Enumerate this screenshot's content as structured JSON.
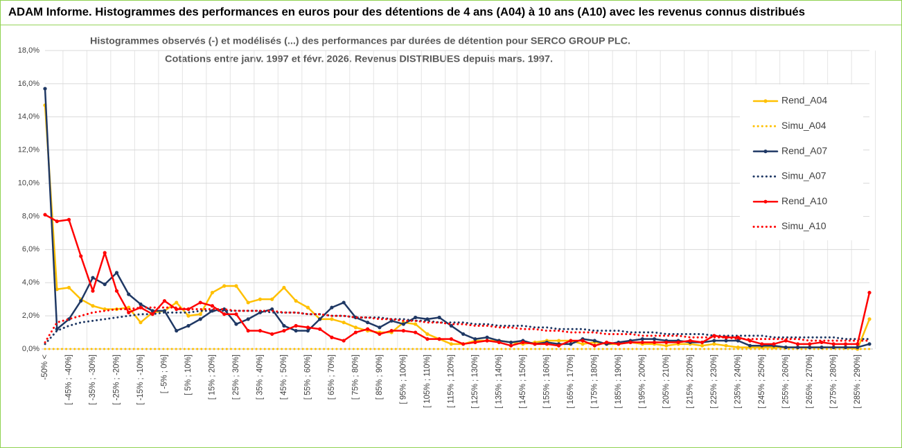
{
  "chart_data": {
    "type": "line",
    "title": "ADAM Informe. Histogrammes des performances en euros pour des détentions de 4 ans (A04) à 10 ans (A10) avec les revenus connus distribués",
    "subtitle": [
      "Histogrammes observés (-) et modélisés (...) des performances par durées de détention pour SERCO GROUP PLC.",
      "Cotations entre janv. 1997 et févr. 2026. Revenus DISTRIBUES depuis mars. 1997."
    ],
    "categories": [
      "-50% <",
      null,
      "[ -45% ; -40%]",
      null,
      "[ -35% ; -30%]",
      null,
      "[ -25% ; -20%]",
      null,
      "[ -15% ; -10%]",
      null,
      "[ -5% ; 0%]",
      null,
      "[ 5% ; 10%]",
      null,
      "[ 15% ; 20%]",
      null,
      "[ 25% ; 30%]",
      null,
      "[ 35% ; 40%]",
      null,
      "[ 45% ; 50%]",
      null,
      "[ 55% ; 60%]",
      null,
      "[ 65% ; 70%]",
      null,
      "[ 75% ; 80%]",
      null,
      "[ 85% ; 90%]",
      null,
      "[ 95% ; 100%]",
      null,
      "[ 105% ; 110%]",
      null,
      "[ 115% ; 120%]",
      null,
      "[ 125% ; 130%]",
      null,
      "[ 135% ; 140%]",
      null,
      "[ 145% ; 150%]",
      null,
      "[ 155% ; 160%]",
      null,
      "[ 165% ; 170%]",
      null,
      "[ 175% ; 180%]",
      null,
      "[ 185% ; 190%]",
      null,
      "[ 195% ; 200%]",
      null,
      "[ 205% ; 210%]",
      null,
      "[ 215% ; 220%]",
      null,
      "[ 225% ; 230%]",
      null,
      "[ 235% ; 240%]",
      null,
      "[ 245% ; 250%]",
      null,
      "[ 255% ; 260%]",
      null,
      "[ 265% ; 270%]",
      null,
      "[ 275% ; 280%]",
      null,
      "[ 285% ; 290%]",
      null
    ],
    "series": [
      {
        "name": "Rend_A04",
        "color": "#ffc000",
        "style": "solid",
        "values": [
          14.7,
          3.6,
          3.7,
          3.0,
          2.6,
          2.4,
          2.4,
          2.5,
          1.6,
          2.2,
          2.3,
          2.8,
          2.0,
          2.1,
          3.4,
          3.8,
          3.8,
          2.8,
          3.0,
          3.0,
          3.7,
          2.9,
          2.5,
          1.8,
          1.8,
          1.6,
          1.3,
          1.1,
          1.0,
          1.0,
          1.6,
          1.5,
          0.9,
          0.6,
          0.3,
          0.3,
          0.5,
          0.5,
          0.5,
          0.4,
          0.3,
          0.4,
          0.5,
          0.5,
          0.5,
          0.3,
          0.4,
          0.3,
          0.3,
          0.4,
          0.3,
          0.3,
          0.2,
          0.3,
          0.3,
          0.2,
          0.3,
          0.2,
          0.1,
          0.1,
          0.1,
          0.1,
          0.1,
          0.1,
          0.1,
          0.1,
          0.1,
          0.1,
          0.0,
          1.8
        ]
      },
      {
        "name": "Simu_A04",
        "color": "#ffc000",
        "style": "dotted",
        "values": [
          0,
          0,
          0,
          0,
          0,
          0,
          0,
          0,
          0,
          0,
          0,
          0,
          0,
          0,
          0,
          0,
          0,
          0,
          0,
          0,
          0,
          0,
          0,
          0,
          0,
          0,
          0,
          0,
          0,
          0,
          0,
          0,
          0,
          0,
          0,
          0,
          0,
          0,
          0,
          0,
          0,
          0,
          0,
          0,
          0,
          0,
          0,
          0,
          0,
          0,
          0,
          0,
          0,
          0,
          0,
          0,
          0,
          0,
          0,
          0,
          0,
          0,
          0,
          0,
          0,
          0,
          0,
          0,
          0,
          0
        ]
      },
      {
        "name": "Rend_A07",
        "color": "#1f3864",
        "style": "solid",
        "values": [
          15.7,
          1.2,
          1.8,
          2.9,
          4.3,
          3.9,
          4.6,
          3.3,
          2.7,
          2.3,
          2.3,
          1.1,
          1.4,
          1.8,
          2.3,
          2.4,
          1.5,
          1.8,
          2.2,
          2.4,
          1.4,
          1.1,
          1.1,
          1.8,
          2.5,
          2.8,
          1.9,
          1.6,
          1.3,
          1.7,
          1.5,
          1.9,
          1.8,
          1.9,
          1.4,
          0.9,
          0.6,
          0.7,
          0.5,
          0.4,
          0.5,
          0.3,
          0.4,
          0.3,
          0.3,
          0.6,
          0.5,
          0.3,
          0.4,
          0.5,
          0.6,
          0.6,
          0.5,
          0.5,
          0.4,
          0.4,
          0.5,
          0.5,
          0.5,
          0.2,
          0.2,
          0.2,
          0.1,
          0.1,
          0.1,
          0.1,
          0.1,
          0.1,
          0.1,
          0.3
        ]
      },
      {
        "name": "Simu_A07",
        "color": "#1f3864",
        "style": "dotted",
        "values": [
          0.3,
          1.1,
          1.4,
          1.6,
          1.7,
          1.8,
          1.9,
          2.0,
          2.1,
          2.1,
          2.2,
          2.2,
          2.2,
          2.3,
          2.3,
          2.3,
          2.3,
          2.3,
          2.3,
          2.2,
          2.2,
          2.2,
          2.1,
          2.1,
          2.0,
          2.0,
          1.9,
          1.9,
          1.9,
          1.8,
          1.8,
          1.7,
          1.7,
          1.6,
          1.6,
          1.6,
          1.5,
          1.5,
          1.4,
          1.4,
          1.4,
          1.3,
          1.3,
          1.2,
          1.2,
          1.2,
          1.1,
          1.1,
          1.1,
          1.0,
          1.0,
          1.0,
          0.9,
          0.9,
          0.9,
          0.9,
          0.8,
          0.8,
          0.8,
          0.8,
          0.8,
          0.7,
          0.7,
          0.7,
          0.7,
          0.7,
          0.7,
          0.6,
          0.6,
          0.6
        ]
      },
      {
        "name": "Rend_A10",
        "color": "#ff0000",
        "style": "solid",
        "values": [
          8.1,
          7.7,
          7.8,
          5.6,
          3.5,
          5.8,
          3.5,
          2.2,
          2.5,
          2.1,
          2.9,
          2.4,
          2.4,
          2.8,
          2.6,
          2.1,
          2.1,
          1.1,
          1.1,
          0.9,
          1.1,
          1.4,
          1.3,
          1.2,
          0.7,
          0.5,
          1.0,
          1.2,
          0.9,
          1.1,
          1.1,
          1.0,
          0.6,
          0.6,
          0.6,
          0.3,
          0.4,
          0.5,
          0.4,
          0.2,
          0.4,
          0.3,
          0.3,
          0.2,
          0.5,
          0.5,
          0.2,
          0.4,
          0.3,
          0.4,
          0.4,
          0.4,
          0.4,
          0.4,
          0.5,
          0.4,
          0.8,
          0.7,
          0.7,
          0.5,
          0.3,
          0.3,
          0.5,
          0.3,
          0.3,
          0.4,
          0.3,
          0.3,
          0.3,
          3.4
        ]
      },
      {
        "name": "Simu_A10",
        "color": "#ff0000",
        "style": "dotted",
        "values": [
          0.4,
          1.6,
          1.8,
          2.0,
          2.2,
          2.3,
          2.4,
          2.4,
          2.5,
          2.5,
          2.5,
          2.5,
          2.4,
          2.4,
          2.4,
          2.4,
          2.3,
          2.3,
          2.3,
          2.3,
          2.2,
          2.2,
          2.1,
          2.1,
          2.0,
          2.0,
          1.9,
          1.9,
          1.8,
          1.8,
          1.7,
          1.7,
          1.6,
          1.6,
          1.5,
          1.5,
          1.4,
          1.4,
          1.3,
          1.3,
          1.2,
          1.2,
          1.1,
          1.1,
          1.0,
          1.0,
          1.0,
          0.9,
          0.9,
          0.9,
          0.8,
          0.8,
          0.8,
          0.8,
          0.7,
          0.7,
          0.7,
          0.7,
          0.6,
          0.6,
          0.6,
          0.6,
          0.6,
          0.6,
          0.5,
          0.5,
          0.5,
          0.5,
          0.5,
          0.5
        ]
      }
    ],
    "ylim": [
      0,
      18
    ],
    "yticks": [
      {
        "value": 0,
        "label": "0,0%"
      },
      {
        "value": 2,
        "label": "2,0%"
      },
      {
        "value": 4,
        "label": "4,0%"
      },
      {
        "value": 6,
        "label": "6,0%"
      },
      {
        "value": 8,
        "label": "8,0%"
      },
      {
        "value": 10,
        "label": "10,0%"
      },
      {
        "value": 12,
        "label": "12,0%"
      },
      {
        "value": 14,
        "label": "14,0%"
      },
      {
        "value": 16,
        "label": "16,0%"
      },
      {
        "value": 18,
        "label": "18,0%"
      }
    ],
    "grid": true,
    "legend": "right"
  }
}
